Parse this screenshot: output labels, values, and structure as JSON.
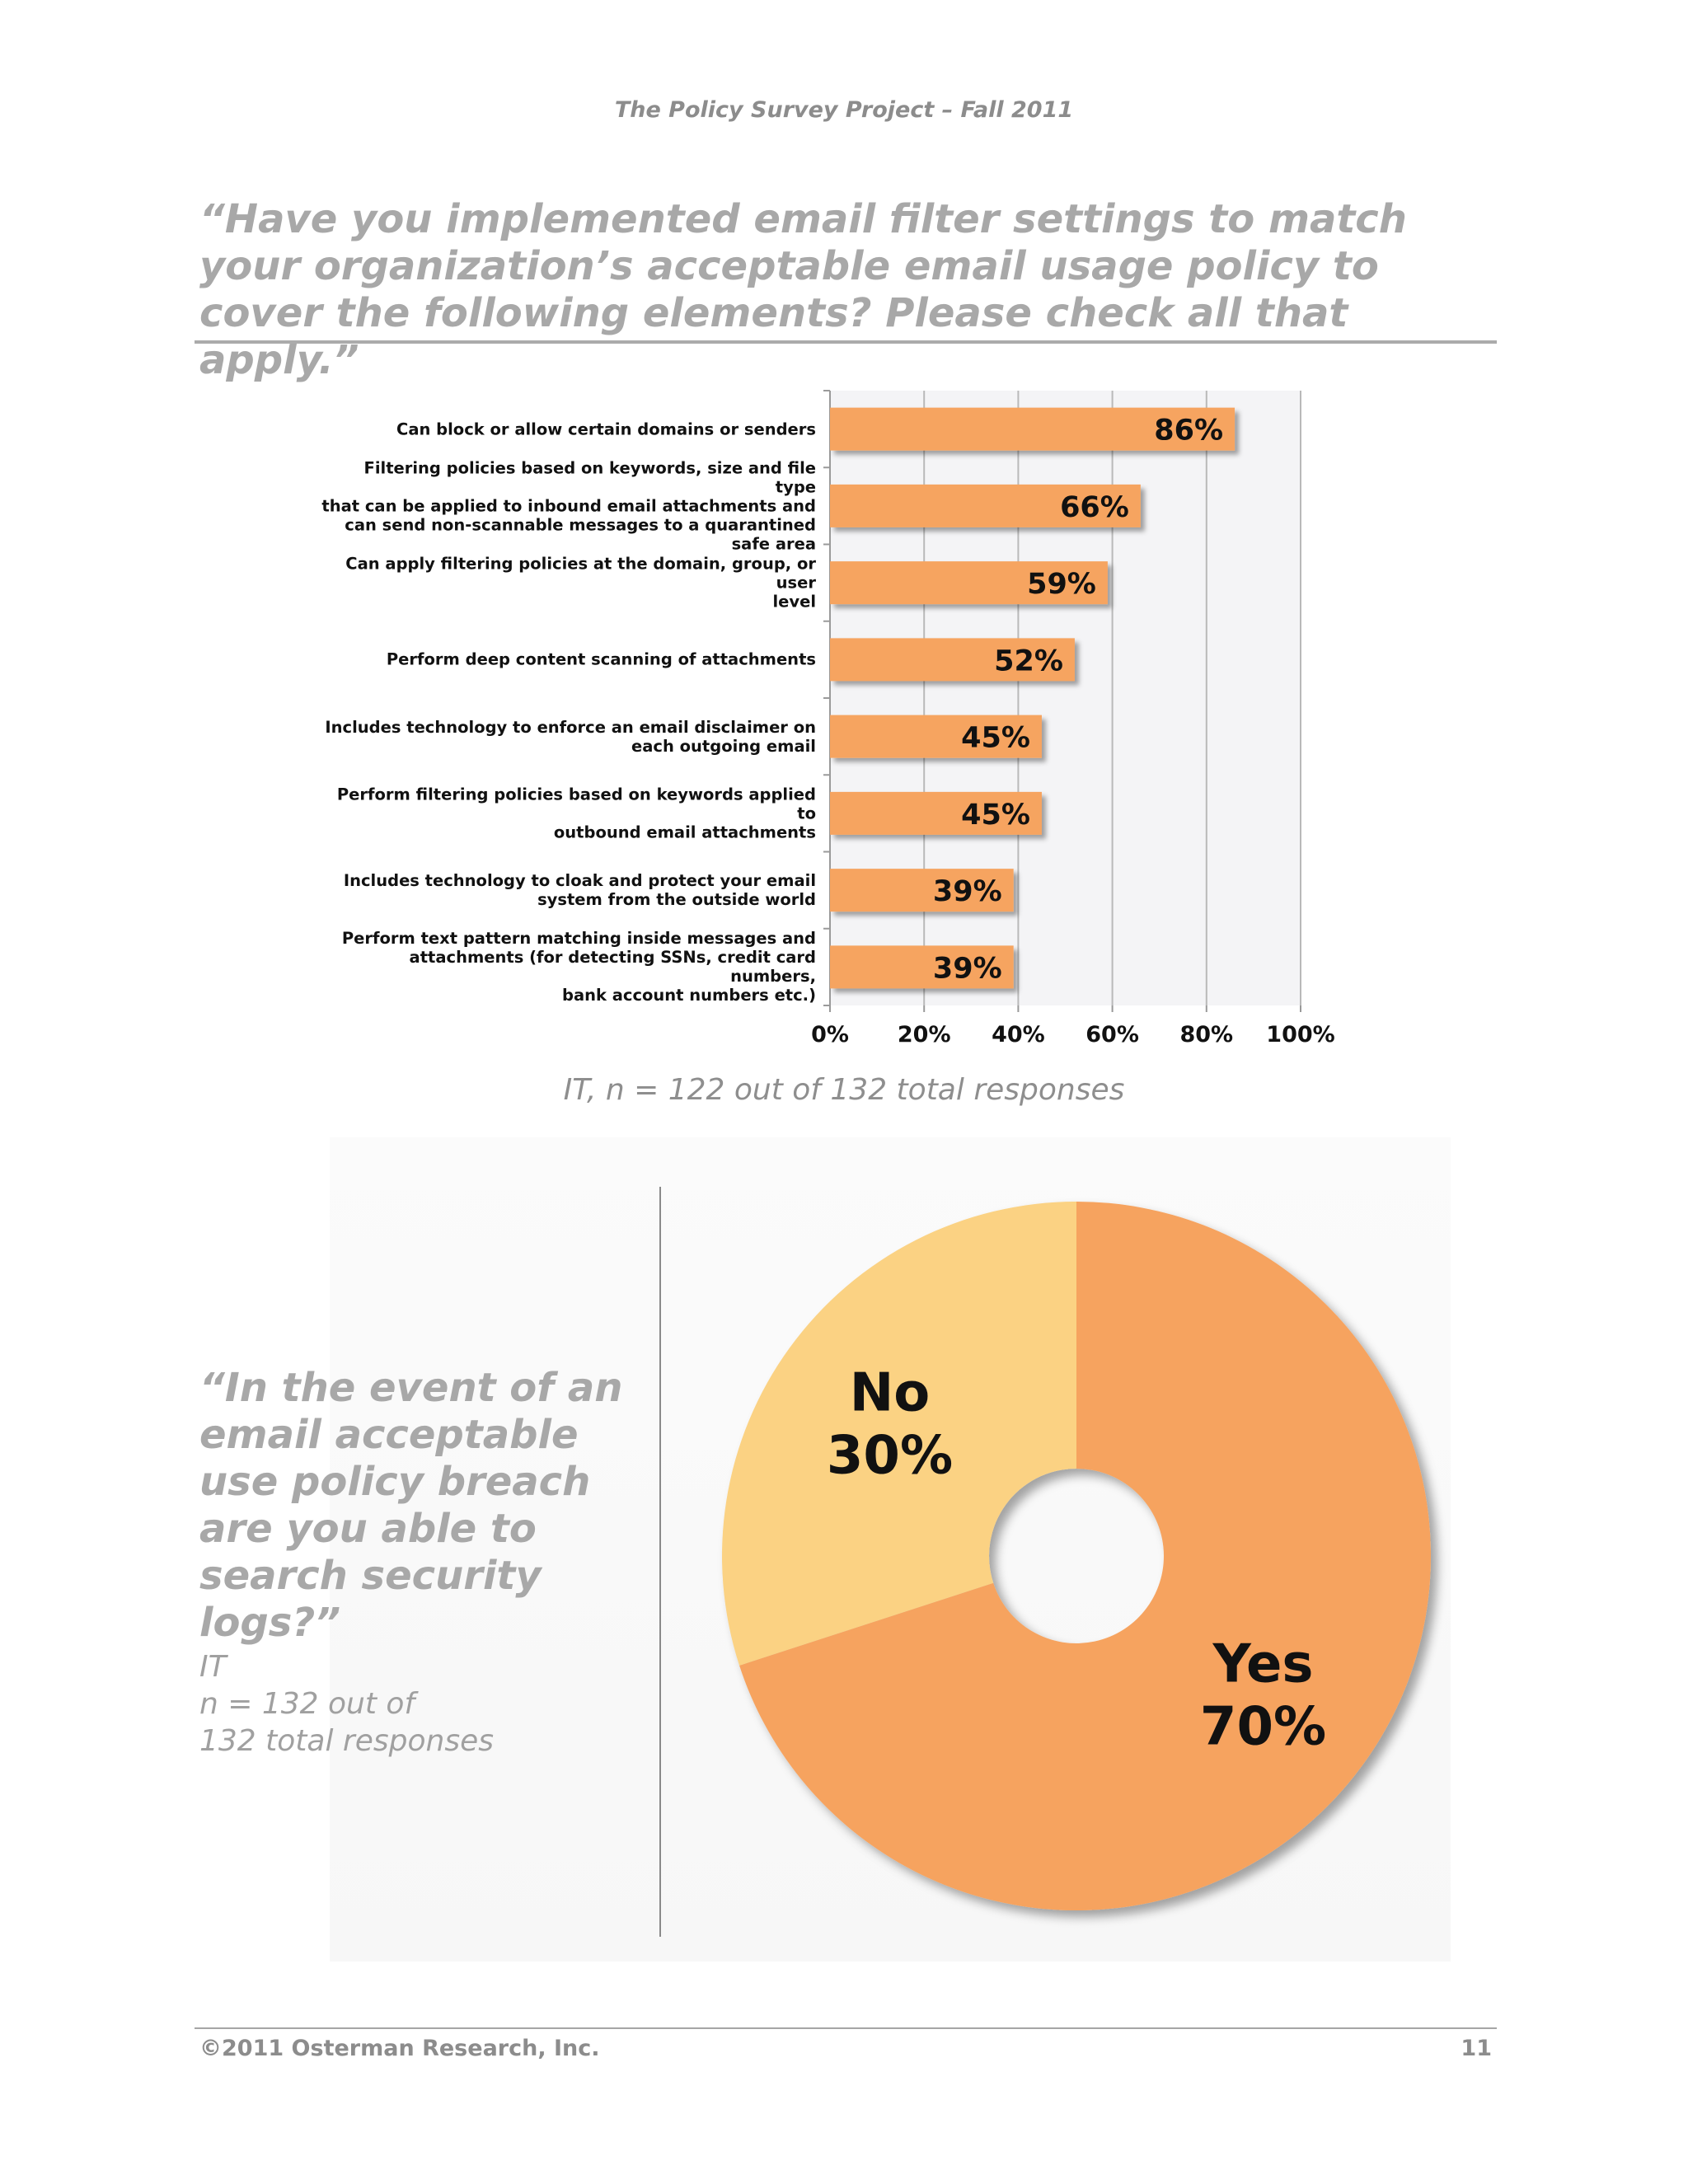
{
  "header": {
    "title": "The Policy Survey Project – Fall 2011"
  },
  "questions": {
    "q1": "“Have you implemented email filter settings to match your organization’s acceptable email usage policy to cover the following elements?  Please check all that apply.”",
    "q1_note": "IT, n = 122 out of 132 total responses",
    "q2": "“In the event of an email acceptable use policy breach are you able to search security logs?”",
    "q2_note_lines": [
      "IT",
      "n = 132 out of",
      "132 total responses"
    ]
  },
  "colors": {
    "bar": "#f6a460",
    "pie_yes": "#f6a35f",
    "pie_no": "#fbd283"
  },
  "chart_data": [
    {
      "type": "bar",
      "orientation": "horizontal",
      "categories": [
        "Can block or allow certain domains or senders",
        "Filtering policies based on keywords, size and file type that can be applied to inbound email attachments and can send non-scannable messages to a quarantined safe area",
        "Can apply filtering policies at the domain, group, or user level",
        "Perform deep content scanning of attachments",
        "Includes technology to enforce an email disclaimer on each outgoing email",
        "Perform filtering policies based on keywords applied to outbound email attachments",
        "Includes technology to cloak and protect your email system from the outside world",
        "Perform text pattern matching inside messages and attachments (for detecting SSNs, credit card numbers, bank account numbers etc.)"
      ],
      "category_lines": [
        [
          "Can block or allow certain domains or senders"
        ],
        [
          "Filtering policies based on keywords, size and file type",
          "that can be applied to inbound email attachments and",
          "can send non-scannable messages to a quarantined",
          "safe area"
        ],
        [
          "Can apply filtering policies at the domain, group, or user",
          "level"
        ],
        [
          "Perform deep content scanning of attachments"
        ],
        [
          "Includes technology to enforce an email disclaimer on",
          "each outgoing email"
        ],
        [
          "Perform filtering policies based on keywords applied to",
          "outbound email attachments"
        ],
        [
          "Includes technology to cloak and protect your email",
          "system from the outside world"
        ],
        [
          "Perform text pattern matching inside messages and",
          "attachments (for detecting SSNs, credit card numbers,",
          "bank account numbers etc.)"
        ]
      ],
      "values": [
        86,
        66,
        59,
        52,
        45,
        45,
        39,
        39
      ],
      "data_labels": [
        "86%",
        "66%",
        "59%",
        "52%",
        "45%",
        "45%",
        "39%",
        "39%"
      ],
      "xlim": [
        0,
        100
      ],
      "x_ticks": [
        0,
        20,
        40,
        60,
        80,
        100
      ],
      "x_tick_labels": [
        "0%",
        "20%",
        "40%",
        "60%",
        "80%",
        "100%"
      ],
      "grid": true
    },
    {
      "type": "pie",
      "donut": true,
      "slices": [
        {
          "label": "Yes",
          "value": 70,
          "value_label": "70%"
        },
        {
          "label": "No",
          "value": 30,
          "value_label": "30%"
        }
      ]
    }
  ],
  "footer": {
    "copyright": "©2011 Osterman Research, Inc.",
    "page_number": "11"
  }
}
